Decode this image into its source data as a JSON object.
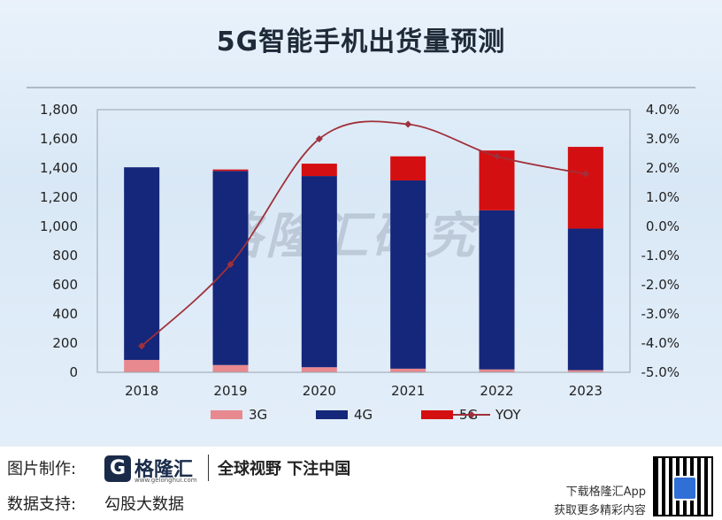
{
  "title": "5G智能手机出货量预测",
  "watermark": "格隆汇研究",
  "chart_data": {
    "type": "bar",
    "stacked": true,
    "categories": [
      "2018",
      "2019",
      "2020",
      "2021",
      "2022",
      "2023"
    ],
    "series": [
      {
        "name": "3G",
        "values": [
          85,
          50,
          35,
          25,
          20,
          15
        ],
        "color": "#e8898f"
      },
      {
        "name": "4G",
        "values": [
          1320,
          1330,
          1310,
          1290,
          1090,
          970
        ],
        "color": "#14277a"
      },
      {
        "name": "5G",
        "values": [
          0,
          10,
          85,
          165,
          410,
          560
        ],
        "color": "#d40f12"
      }
    ],
    "line_series": {
      "name": "YOY",
      "values": [
        -4.1,
        -1.3,
        3.0,
        3.5,
        2.4,
        1.8
      ],
      "color": "#a0303a",
      "axis": "right"
    },
    "y_left": {
      "min": 0,
      "max": 1800,
      "ticks": [
        "0",
        "200",
        "400",
        "600",
        "800",
        "1,000",
        "1,200",
        "1,400",
        "1,600",
        "1,800"
      ]
    },
    "y_right": {
      "min": -5,
      "max": 4,
      "ticks": [
        "-5.0%",
        "-4.0%",
        "-3.0%",
        "-2.0%",
        "-1.0%",
        "0.0%",
        "1.0%",
        "2.0%",
        "3.0%",
        "4.0%"
      ]
    },
    "legend": [
      "3G",
      "4G",
      "5G",
      "YOY"
    ],
    "legend_position": "bottom"
  },
  "footer": {
    "made_by_label": "图片制作:",
    "logo_letter": "G",
    "logo_name": "格隆汇",
    "logo_sub": "www.gelonghui.com",
    "slogan": "全球视野 下注中国",
    "data_label": "数据支持:",
    "data_source": "勾股大数据",
    "download_line1": "下载格隆汇App",
    "download_line2": "获取更多精彩内容"
  }
}
